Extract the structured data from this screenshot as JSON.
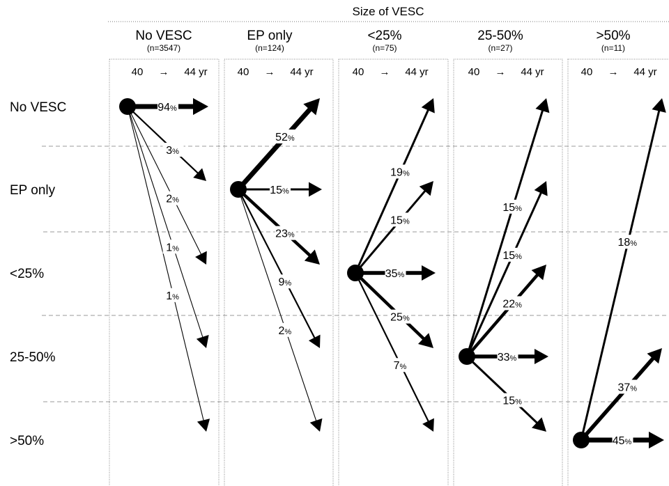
{
  "header": {
    "title": "Size of VESC"
  },
  "columns": [
    {
      "name": "No VESC",
      "n": "(n=3547)",
      "age_from": "40",
      "arrow": "→",
      "age_to": "44 yr"
    },
    {
      "name": "EP only",
      "n": "(n=124)",
      "age_from": "40",
      "arrow": "→",
      "age_to": "44 yr"
    },
    {
      "name": "<25%",
      "n": "(n=75)",
      "age_from": "40",
      "arrow": "→",
      "age_to": "44 yr"
    },
    {
      "name": "25-50%",
      "n": "(n=27)",
      "age_from": "40",
      "arrow": "→",
      "age_to": "44 yr"
    },
    {
      "name": ">50%",
      "n": "(n=11)",
      "age_from": "40",
      "arrow": "→",
      "age_to": "44 yr"
    }
  ],
  "rows": [
    "No VESC",
    "EP only",
    "<25%",
    "25-50%",
    ">50%"
  ],
  "transitions": [
    {
      "from_col": 0,
      "to_row": 0,
      "pct": "94"
    },
    {
      "from_col": 0,
      "to_row": 1,
      "pct": "3"
    },
    {
      "from_col": 0,
      "to_row": 2,
      "pct": "2"
    },
    {
      "from_col": 0,
      "to_row": 3,
      "pct": "1"
    },
    {
      "from_col": 0,
      "to_row": 4,
      "pct": "1"
    },
    {
      "from_col": 1,
      "to_row": 0,
      "pct": "52"
    },
    {
      "from_col": 1,
      "to_row": 1,
      "pct": "15"
    },
    {
      "from_col": 1,
      "to_row": 2,
      "pct": "23"
    },
    {
      "from_col": 1,
      "to_row": 3,
      "pct": "9"
    },
    {
      "from_col": 1,
      "to_row": 4,
      "pct": "2"
    },
    {
      "from_col": 2,
      "to_row": 0,
      "pct": "19"
    },
    {
      "from_col": 2,
      "to_row": 1,
      "pct": "15"
    },
    {
      "from_col": 2,
      "to_row": 2,
      "pct": "35"
    },
    {
      "from_col": 2,
      "to_row": 3,
      "pct": "25"
    },
    {
      "from_col": 2,
      "to_row": 4,
      "pct": "7"
    },
    {
      "from_col": 3,
      "to_row": 0,
      "pct": "15"
    },
    {
      "from_col": 3,
      "to_row": 1,
      "pct": "15"
    },
    {
      "from_col": 3,
      "to_row": 2,
      "pct": "22"
    },
    {
      "from_col": 3,
      "to_row": 3,
      "pct": "33"
    },
    {
      "from_col": 3,
      "to_row": 4,
      "pct": "15"
    },
    {
      "from_col": 4,
      "to_row": 0,
      "pct": "18"
    },
    {
      "from_col": 4,
      "to_row": 3,
      "pct": "37"
    },
    {
      "from_col": 4,
      "to_row": 4,
      "pct": "45"
    }
  ],
  "pct_unit": "%"
}
